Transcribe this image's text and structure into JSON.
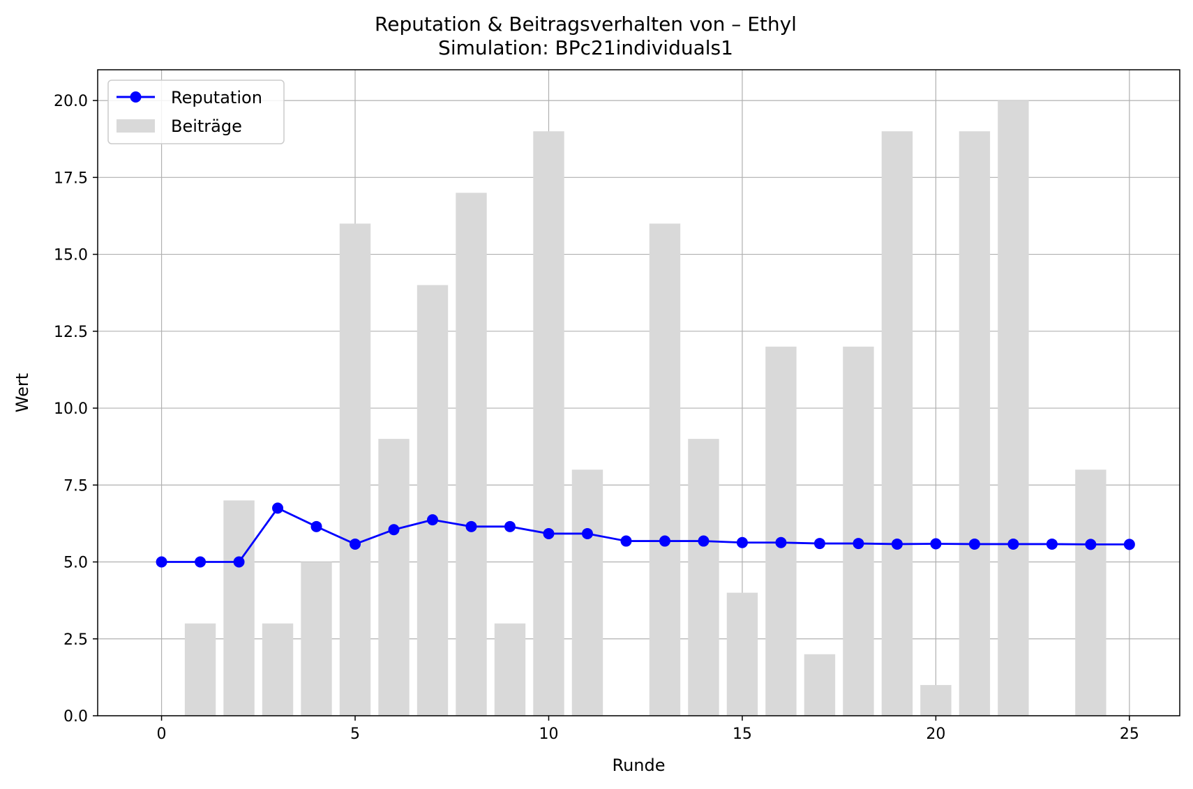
{
  "chart_data": {
    "type": "bar+line",
    "title": "Reputation & Beitragsverhalten von – Ethyl",
    "subtitle": "Simulation: BPc21individuals1",
    "xlabel": "Runde",
    "ylabel": "Wert",
    "xlim": [
      -1.65,
      26.3
    ],
    "ylim": [
      0,
      21
    ],
    "grid": true,
    "legend_position": "upper-left",
    "x_ticks": [
      0,
      5,
      10,
      15,
      20,
      25
    ],
    "y_ticks": [
      0.0,
      2.5,
      5.0,
      7.5,
      10.0,
      12.5,
      15.0,
      17.5,
      20.0
    ],
    "y_tick_labels": [
      "0.0",
      "2.5",
      "5.0",
      "7.5",
      "10.0",
      "12.5",
      "15.0",
      "17.5",
      "20.0"
    ],
    "x_tick_labels": [
      "0",
      "5",
      "10",
      "15",
      "20",
      "25"
    ],
    "bars": {
      "name": "Beiträge",
      "color": "#d9d9d9",
      "x": [
        0,
        1,
        2,
        3,
        4,
        5,
        6,
        7,
        8,
        9,
        10,
        11,
        12,
        13,
        14,
        15,
        16,
        17,
        18,
        19,
        20,
        21,
        22,
        23,
        24,
        25
      ],
      "values": [
        0,
        3,
        7,
        3,
        5,
        16,
        9,
        14,
        17,
        3,
        19,
        8,
        0,
        16,
        9,
        4,
        12,
        2,
        12,
        19,
        1,
        19,
        20,
        0,
        8,
        0
      ]
    },
    "line": {
      "name": "Reputation",
      "color": "#0000ff",
      "x": [
        0,
        1,
        2,
        3,
        4,
        5,
        6,
        7,
        8,
        9,
        10,
        11,
        12,
        13,
        14,
        15,
        16,
        17,
        18,
        19,
        20,
        21,
        22,
        23,
        24,
        25
      ],
      "values": [
        5.0,
        5.0,
        5.0,
        6.75,
        6.15,
        5.58,
        6.05,
        6.37,
        6.15,
        6.15,
        5.92,
        5.92,
        5.68,
        5.68,
        5.68,
        5.63,
        5.63,
        5.6,
        5.6,
        5.58,
        5.59,
        5.58,
        5.58,
        5.58,
        5.57,
        5.57
      ]
    }
  }
}
